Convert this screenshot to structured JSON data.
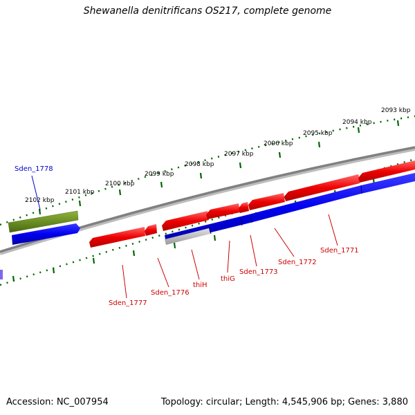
{
  "title": "Shewanella denitrificans OS217, complete genome",
  "accession": "Accession: NC_007954",
  "summary": "Topology: circular; Length: 4,545,906 bp; Genes: 3,880",
  "ticks": [
    "2093 kbp",
    "2094 kbp",
    "2095 kbp",
    "2096 kbp",
    "2097 kbp",
    "2098 kbp",
    "2099 kbp",
    "2100 kbp",
    "2101 kbp",
    "2102 kbp"
  ],
  "genes": [
    "Sden_1778",
    "Sden_1777",
    "Sden_1776",
    "thiH",
    "thiG",
    "Sden_1773",
    "Sden_1772",
    "Sden_1771"
  ],
  "colors": {
    "forward_cds": "#0000ee",
    "reverse_cds": "#ee0000",
    "gene_olive": "#6b8e23",
    "backbone": "#808080",
    "tick_marks": "#006400",
    "gene_label_blue": "#0000cc",
    "gene_label_red": "#cc0000"
  }
}
